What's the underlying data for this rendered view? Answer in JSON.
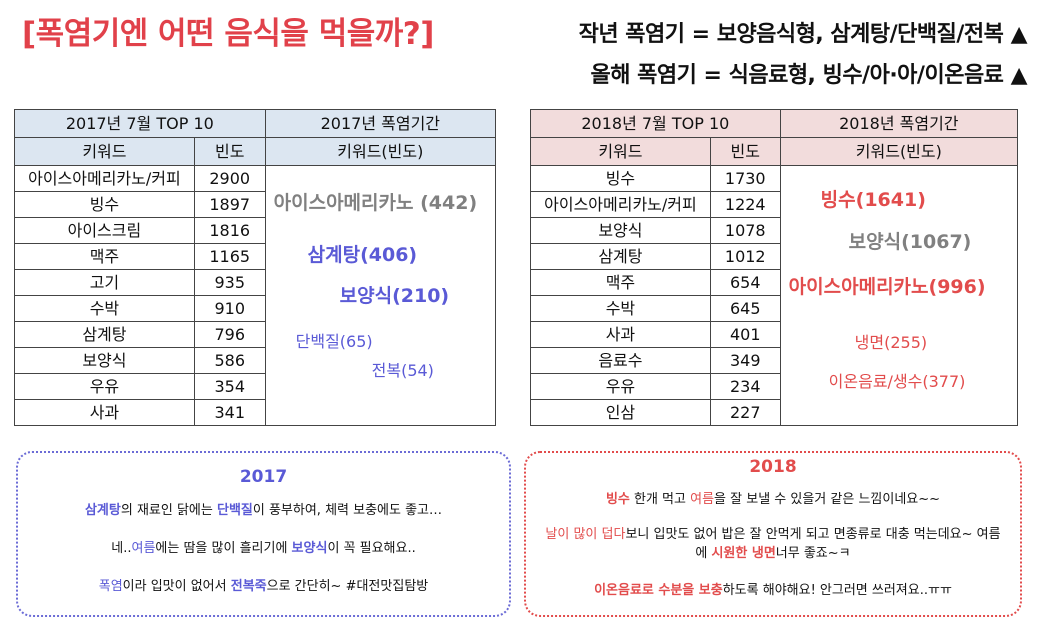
{
  "header": {
    "title": "[폭염기엔 어떤 음식을 먹을까?]",
    "line1": "작년 폭염기 = 보양음식형, 삼계탕/단백질/전복 ▲",
    "line2": "올해 폭염기 = 식음료형, 빙수/아·아/이온음료 ▲"
  },
  "table2017": {
    "title": "2017년 7월 TOP 10",
    "period_title": "2017년 폭염기간",
    "col_keyword": "키워드",
    "col_freq": "빈도",
    "col_kwfreq": "키워드(빈도)",
    "rows": [
      {
        "k": "아이스아메리카노/커피",
        "f": "2900"
      },
      {
        "k": "빙수",
        "f": "1897"
      },
      {
        "k": "아이스크림",
        "f": "1816"
      },
      {
        "k": "맥주",
        "f": "1165"
      },
      {
        "k": "고기",
        "f": "935"
      },
      {
        "k": "수박",
        "f": "910"
      },
      {
        "k": "삼계탕",
        "f": "796"
      },
      {
        "k": "보양식",
        "f": "586"
      },
      {
        "k": "우유",
        "f": "354"
      },
      {
        "k": "사과",
        "f": "341"
      }
    ],
    "cloud": [
      {
        "t": "아이스아메리카노 (442)",
        "color": "#808080"
      },
      {
        "t": "삼계탕(406)",
        "color": "#5a5ad6"
      },
      {
        "t": "보양식(210)",
        "color": "#5a5ad6"
      },
      {
        "t": "단백질(65)",
        "color": "#5a5ad6"
      },
      {
        "t": "전복(54)",
        "color": "#5a5ad6"
      }
    ]
  },
  "table2018": {
    "title": "2018년 7월 TOP 10",
    "period_title": "2018년 폭염기간",
    "col_keyword": "키워드",
    "col_freq": "빈도",
    "col_kwfreq": "키워드(빈도)",
    "rows": [
      {
        "k": "빙수",
        "f": "1730"
      },
      {
        "k": "아이스아메리카노/커피",
        "f": "1224"
      },
      {
        "k": "보양식",
        "f": "1078"
      },
      {
        "k": "삼계탕",
        "f": "1012"
      },
      {
        "k": "맥주",
        "f": "654"
      },
      {
        "k": "수박",
        "f": "645"
      },
      {
        "k": "사과",
        "f": "401"
      },
      {
        "k": "음료수",
        "f": "349"
      },
      {
        "k": "우유",
        "f": "234"
      },
      {
        "k": "인삼",
        "f": "227"
      }
    ],
    "cloud": [
      {
        "t": "빙수(1641)",
        "color": "#e24c4c"
      },
      {
        "t": "보양식(1067)",
        "color": "#808080"
      },
      {
        "t": "아이스아메리카노(996)",
        "color": "#e24c4c"
      },
      {
        "t": "냉면(255)",
        "color": "#e24c4c"
      },
      {
        "t": "이온음료/생수(377)",
        "color": "#e24c4c"
      }
    ]
  },
  "box2017": {
    "year": "2017",
    "p1": [
      "삼계탕",
      "의 재료인 닭에는 ",
      "단백질",
      "이 풍부하여, 체력 보충에도 좋고…"
    ],
    "p2": [
      "네..",
      "여름",
      "에는 땀을 많이 흘리기에 ",
      "보양식",
      "이 꼭 필요해요.."
    ],
    "p3": [
      "폭염",
      "이라 입맛이 없어서 ",
      "전복죽",
      "으로 간단히~ #대전맛집탐방"
    ]
  },
  "box2018": {
    "year": "2018",
    "p1": [
      "빙수",
      " 한개 먹고 ",
      "여름",
      "을 잘 보낼 수 있을거 같은 느낌이네요~~"
    ],
    "p2": [
      "날이 많이 덥다",
      "보니 입맛도 없어 밥은 잘 안먹게 되고 면종류로 대충 먹는데요~ 여름에 ",
      "시원한 냉면",
      "너무 좋죠~ㅋ"
    ],
    "p3": [
      "이온음료로 수분을 보충",
      "하도록 해야해요! 안그러면 쓰러져요..ㅠㅠ"
    ]
  }
}
